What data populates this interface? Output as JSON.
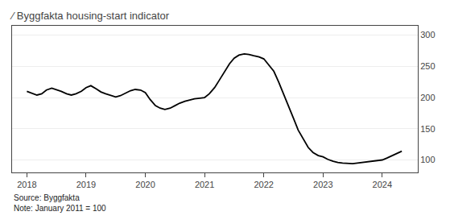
{
  "chart_data": {
    "type": "line",
    "title": "∕ Byggfakta housing-start indicator",
    "annotations": [
      "Source: Byggfakta",
      "Note: January 2011 = 100"
    ],
    "color": "#000000",
    "xlim": [
      2017.75,
      2024.6
    ],
    "xticks": [
      2018,
      2019,
      2020,
      2021,
      2022,
      2023,
      2024
    ],
    "ylim": [
      80,
      315
    ],
    "yticks": [
      100,
      150,
      200,
      250,
      300
    ],
    "grid": "y",
    "x": [
      2018.0,
      2018.08,
      2018.17,
      2018.25,
      2018.33,
      2018.42,
      2018.5,
      2018.58,
      2018.67,
      2018.75,
      2018.83,
      2018.92,
      2019.0,
      2019.08,
      2019.17,
      2019.25,
      2019.33,
      2019.42,
      2019.5,
      2019.58,
      2019.67,
      2019.75,
      2019.83,
      2019.92,
      2020.0,
      2020.08,
      2020.17,
      2020.25,
      2020.33,
      2020.42,
      2020.5,
      2020.58,
      2020.67,
      2020.75,
      2020.83,
      2020.92,
      2021.0,
      2021.08,
      2021.17,
      2021.25,
      2021.33,
      2021.42,
      2021.5,
      2021.58,
      2021.67,
      2021.75,
      2021.83,
      2021.92,
      2022.0,
      2022.08,
      2022.17,
      2022.25,
      2022.33,
      2022.42,
      2022.5,
      2022.58,
      2022.67,
      2022.75,
      2022.83,
      2022.92,
      2023.0,
      2023.08,
      2023.17,
      2023.25,
      2023.33,
      2023.42,
      2023.5,
      2023.58,
      2023.67,
      2023.75,
      2023.83,
      2023.92,
      2024.0,
      2024.08,
      2024.17,
      2024.25,
      2024.33
    ],
    "values": [
      210,
      207,
      204,
      206,
      212,
      215,
      213,
      210,
      206,
      204,
      206,
      210,
      216,
      219,
      214,
      209,
      206,
      203,
      201,
      203,
      207,
      211,
      213,
      212,
      208,
      197,
      187,
      183,
      181,
      183,
      187,
      191,
      194,
      196,
      198,
      199,
      200,
      206,
      216,
      228,
      241,
      254,
      263,
      268,
      270,
      269,
      267,
      265,
      262,
      253,
      242,
      225,
      207,
      187,
      167,
      148,
      133,
      120,
      112,
      107,
      105,
      101,
      98,
      96,
      95,
      94,
      94,
      95,
      96,
      97,
      98,
      99,
      100,
      103,
      107,
      110,
      114
    ]
  }
}
